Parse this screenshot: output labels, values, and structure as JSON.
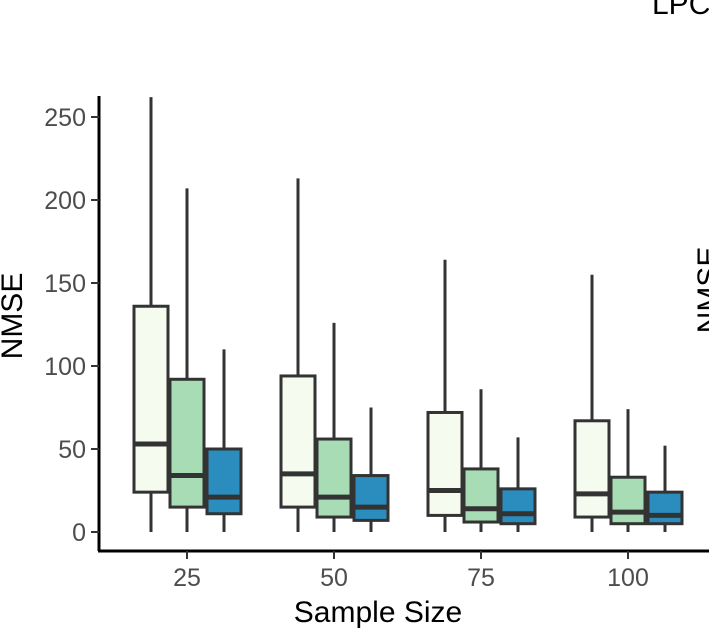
{
  "chart_data": {
    "type": "boxplot",
    "title": "",
    "xlabel": "Sample Size",
    "ylabel": "NMSE",
    "categories": [
      "25",
      "50",
      "75",
      "100"
    ],
    "yticks": [
      0,
      50,
      100,
      150,
      200,
      250
    ],
    "ylim": [
      -5,
      262
    ],
    "grid": false,
    "legend": "none",
    "series": [
      {
        "color": "#f5fbef",
        "boxes": [
          {
            "min": 0,
            "q1": 24,
            "median": 53,
            "q3": 136,
            "max": 262
          },
          {
            "min": 0,
            "q1": 15,
            "median": 35,
            "q3": 94,
            "max": 213
          },
          {
            "min": 0,
            "q1": 10,
            "median": 25,
            "q3": 72,
            "max": 164
          },
          {
            "min": 0,
            "q1": 9,
            "median": 23,
            "q3": 67,
            "max": 155
          }
        ]
      },
      {
        "color": "#a8dcb5",
        "boxes": [
          {
            "min": 0,
            "q1": 15,
            "median": 34,
            "q3": 92,
            "max": 207
          },
          {
            "min": 0,
            "q1": 9,
            "median": 21,
            "q3": 56,
            "max": 126
          },
          {
            "min": 0,
            "q1": 6,
            "median": 14,
            "q3": 38,
            "max": 86
          },
          {
            "min": 0,
            "q1": 5,
            "median": 12,
            "q3": 33,
            "max": 74
          }
        ]
      },
      {
        "color": "#2b8cbe",
        "boxes": [
          {
            "min": 0,
            "q1": 11,
            "median": 21,
            "q3": 50,
            "max": 110
          },
          {
            "min": 0,
            "q1": 7,
            "median": 15,
            "q3": 34,
            "max": 75
          },
          {
            "min": 0,
            "q1": 5,
            "median": 11,
            "q3": 26,
            "max": 57
          },
          {
            "min": 0,
            "q1": 5,
            "median": 10,
            "q3": 24,
            "max": 52
          }
        ]
      }
    ]
  },
  "neighbor_panel": {
    "title_fragment": "LPC",
    "ylabel_fragment": "NMSE"
  }
}
